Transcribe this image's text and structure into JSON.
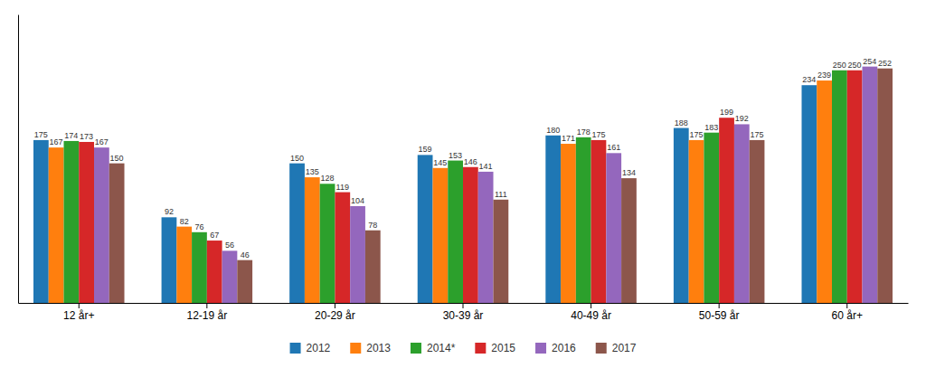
{
  "chart_data": {
    "type": "bar",
    "categories": [
      "12 år+",
      "12-19 år",
      "20-29 år",
      "30-39 år",
      "40-49 år",
      "50-59 år",
      "60 år+"
    ],
    "series": [
      {
        "name": "2012",
        "values": [
          175,
          92,
          150,
          159,
          180,
          188,
          234
        ]
      },
      {
        "name": "2013",
        "values": [
          167,
          82,
          135,
          145,
          171,
          175,
          239
        ]
      },
      {
        "name": "2014*",
        "values": [
          174,
          76,
          128,
          153,
          178,
          183,
          250
        ]
      },
      {
        "name": "2015",
        "values": [
          173,
          67,
          119,
          146,
          175,
          199,
          250
        ]
      },
      {
        "name": "2016",
        "values": [
          167,
          56,
          104,
          141,
          161,
          192,
          254
        ]
      },
      {
        "name": "2017",
        "values": [
          150,
          46,
          78,
          111,
          134,
          175,
          252
        ]
      }
    ],
    "ylim": [
      0,
      310
    ],
    "data_labels": true,
    "tick_labels": "x",
    "grid": false,
    "legend": "bottom"
  }
}
